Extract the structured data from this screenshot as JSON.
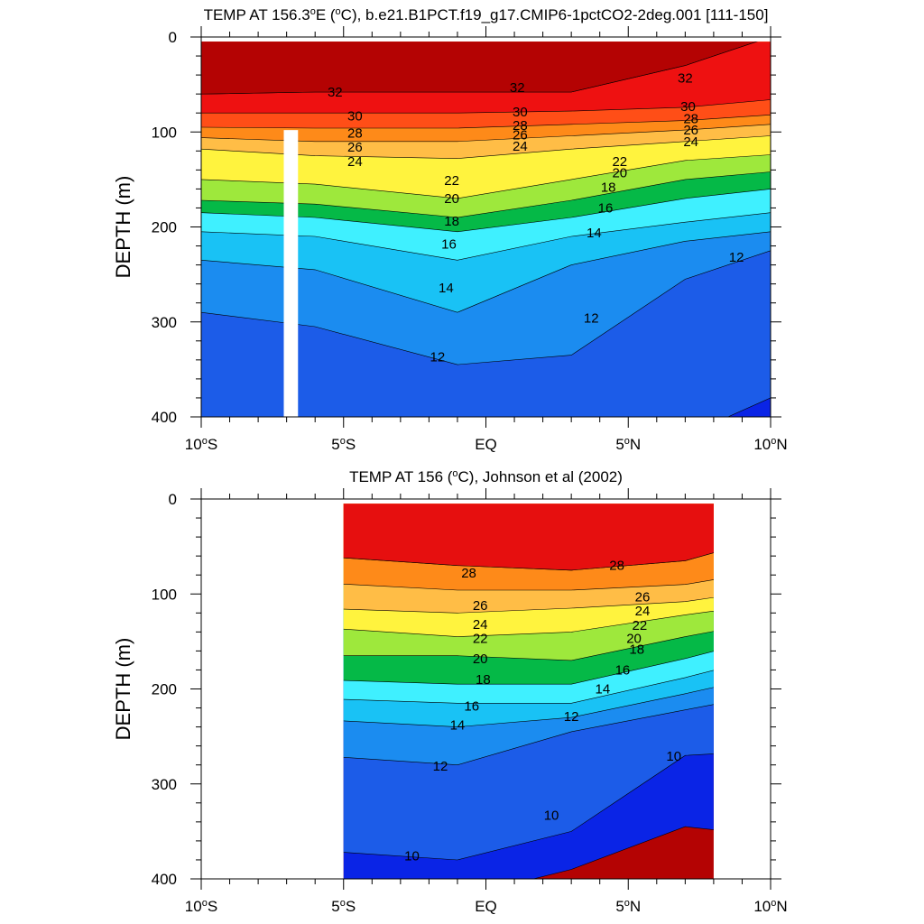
{
  "chart_data": [
    {
      "type": "contour",
      "title_pre": "TEMP AT 156.3",
      "title_deg_sup": "o",
      "title_post": "E (",
      "title_unit_sup": "o",
      "title_tail": "C), b.e21.B1PCT.f19_g17.CMIP6-1pctCO2-2deg.001 [111-150]",
      "ylabel": "DEPTH (m)",
      "ylim": [
        0,
        400
      ],
      "xlim": [
        -10,
        10
      ],
      "yticks": [
        0,
        100,
        200,
        300,
        400
      ],
      "xticks": [
        {
          "v": -10,
          "num": "10",
          "sup": "o",
          "hem": "S"
        },
        {
          "v": -5,
          "num": "5",
          "sup": "o",
          "hem": "S"
        },
        {
          "v": 0,
          "num": "EQ",
          "sup": "",
          "hem": ""
        },
        {
          "v": 5,
          "num": "5",
          "sup": "o",
          "hem": "N"
        },
        {
          "v": 10,
          "num": "10",
          "sup": "o",
          "hem": "N"
        }
      ],
      "data_extent": [
        -10,
        10
      ],
      "missing_band": [
        -7.1,
        -6.6
      ],
      "surface": 5,
      "isotherms": [
        {
          "v": 32,
          "d": [
            60,
            58,
            58,
            58,
            30,
            0
          ]
        },
        {
          "v": 30,
          "d": [
            80,
            80,
            80,
            78,
            74,
            66
          ]
        },
        {
          "v": 28,
          "d": [
            95,
            96,
            96,
            92,
            88,
            82
          ]
        },
        {
          "v": 26,
          "d": [
            106,
            110,
            110,
            104,
            98,
            92
          ]
        },
        {
          "v": 24,
          "d": [
            118,
            125,
            128,
            118,
            110,
            104
          ]
        },
        {
          "v": 22,
          "d": [
            150,
            155,
            170,
            150,
            130,
            124
          ]
        },
        {
          "v": 20,
          "d": [
            172,
            176,
            190,
            172,
            150,
            142
          ]
        },
        {
          "v": 18,
          "d": [
            185,
            190,
            205,
            190,
            170,
            160
          ]
        },
        {
          "v": 16,
          "d": [
            205,
            210,
            235,
            210,
            195,
            185
          ]
        },
        {
          "v": 14,
          "d": [
            235,
            245,
            290,
            240,
            215,
            205
          ]
        },
        {
          "v": 12,
          "d": [
            290,
            305,
            345,
            335,
            255,
            225
          ]
        },
        {
          "v": 10,
          "d": [
            400,
            420,
            420,
            420,
            420,
            380
          ]
        }
      ],
      "labels": [
        {
          "v": 32,
          "x": -5.3,
          "y": 58
        },
        {
          "v": 32,
          "x": 1.1,
          "y": 53
        },
        {
          "v": 32,
          "x": 7.0,
          "y": 43
        },
        {
          "v": 30,
          "x": -4.6,
          "y": 83
        },
        {
          "v": 30,
          "x": 1.2,
          "y": 79
        },
        {
          "v": 30,
          "x": 7.1,
          "y": 73
        },
        {
          "v": 28,
          "x": -4.6,
          "y": 101
        },
        {
          "v": 28,
          "x": 1.2,
          "y": 93
        },
        {
          "v": 28,
          "x": 7.2,
          "y": 86
        },
        {
          "v": 26,
          "x": -4.6,
          "y": 116
        },
        {
          "v": 26,
          "x": 1.2,
          "y": 103
        },
        {
          "v": 26,
          "x": 7.2,
          "y": 98
        },
        {
          "v": 24,
          "x": -4.6,
          "y": 131
        },
        {
          "v": 24,
          "x": 1.2,
          "y": 115
        },
        {
          "v": 24,
          "x": 7.2,
          "y": 110
        },
        {
          "v": 22,
          "x": -1.2,
          "y": 151
        },
        {
          "v": 22,
          "x": 4.7,
          "y": 131
        },
        {
          "v": 20,
          "x": -1.2,
          "y": 170
        },
        {
          "v": 20,
          "x": 4.7,
          "y": 143
        },
        {
          "v": 18,
          "x": -1.2,
          "y": 194
        },
        {
          "v": 18,
          "x": 4.3,
          "y": 158
        },
        {
          "v": 16,
          "x": -1.3,
          "y": 218
        },
        {
          "v": 16,
          "x": 4.2,
          "y": 180
        },
        {
          "v": 14,
          "x": -1.4,
          "y": 264
        },
        {
          "v": 14,
          "x": 3.8,
          "y": 206
        },
        {
          "v": 12,
          "x": -1.7,
          "y": 337
        },
        {
          "v": 12,
          "x": 3.7,
          "y": 296
        },
        {
          "v": 12,
          "x": 8.8,
          "y": 232
        }
      ]
    },
    {
      "type": "contour",
      "title_pre": "TEMP AT 156 (",
      "title_deg_sup": "o",
      "title_post": "C), Johnson et al (2002)",
      "title_unit_sup": "",
      "title_tail": "",
      "ylabel": "DEPTH (m)",
      "ylim": [
        0,
        400
      ],
      "xlim": [
        -10,
        10
      ],
      "yticks": [
        0,
        100,
        200,
        300,
        400
      ],
      "xticks": [
        {
          "v": -10,
          "num": "10",
          "sup": "o",
          "hem": "S"
        },
        {
          "v": -5,
          "num": "5",
          "sup": "o",
          "hem": "S"
        },
        {
          "v": 0,
          "num": "EQ",
          "sup": "",
          "hem": ""
        },
        {
          "v": 5,
          "num": "5",
          "sup": "o",
          "hem": "N"
        },
        {
          "v": 10,
          "num": "10",
          "sup": "o",
          "hem": "N"
        }
      ],
      "data_extent": [
        -5,
        8
      ],
      "missing_band": null,
      "surface": 5,
      "isotherms": [
        {
          "v": 28,
          "d": [
            55,
            60,
            70,
            75,
            65,
            40
          ]
        },
        {
          "v": 26,
          "d": [
            85,
            88,
            96,
            96,
            90,
            75
          ]
        },
        {
          "v": 24,
          "d": [
            110,
            115,
            120,
            115,
            108,
            95
          ]
        },
        {
          "v": 22,
          "d": [
            125,
            135,
            145,
            140,
            122,
            110
          ]
        },
        {
          "v": 20,
          "d": [
            170,
            165,
            165,
            170,
            145,
            128
          ]
        },
        {
          "v": 18,
          "d": [
            190,
            190,
            195,
            195,
            168,
            145
          ]
        },
        {
          "v": 16,
          "d": [
            205,
            210,
            215,
            215,
            188,
            165
          ]
        },
        {
          "v": 14,
          "d": [
            225,
            232,
            240,
            230,
            205,
            185
          ]
        },
        {
          "v": 12,
          "d": [
            255,
            270,
            280,
            245,
            222,
            205
          ]
        },
        {
          "v": 10,
          "d": [
            340,
            370,
            380,
            350,
            270,
            265
          ]
        },
        {
          "v": 8,
          "d": [
            430,
            420,
            420,
            390,
            345,
            355
          ]
        }
      ],
      "labels": [
        {
          "v": 28,
          "x": -0.6,
          "y": 78
        },
        {
          "v": 28,
          "x": 4.6,
          "y": 70
        },
        {
          "v": 26,
          "x": -0.2,
          "y": 112
        },
        {
          "v": 26,
          "x": 5.5,
          "y": 103
        },
        {
          "v": 24,
          "x": -0.2,
          "y": 132
        },
        {
          "v": 24,
          "x": 5.5,
          "y": 118
        },
        {
          "v": 22,
          "x": -0.2,
          "y": 147
        },
        {
          "v": 22,
          "x": 5.4,
          "y": 133
        },
        {
          "v": 20,
          "x": -0.2,
          "y": 168
        },
        {
          "v": 20,
          "x": 5.2,
          "y": 147
        },
        {
          "v": 18,
          "x": -0.1,
          "y": 190
        },
        {
          "v": 18,
          "x": 5.3,
          "y": 158
        },
        {
          "v": 16,
          "x": -0.5,
          "y": 218
        },
        {
          "v": 16,
          "x": 4.8,
          "y": 180
        },
        {
          "v": 14,
          "x": -1.0,
          "y": 238
        },
        {
          "v": 14,
          "x": 4.1,
          "y": 200
        },
        {
          "v": 12,
          "x": -1.6,
          "y": 281
        },
        {
          "v": 12,
          "x": 3.0,
          "y": 229
        },
        {
          "v": 10,
          "x": 2.3,
          "y": 333
        },
        {
          "v": 10,
          "x": 6.6,
          "y": 271
        },
        {
          "v": 10,
          "x": -2.6,
          "y": 376
        }
      ]
    }
  ]
}
